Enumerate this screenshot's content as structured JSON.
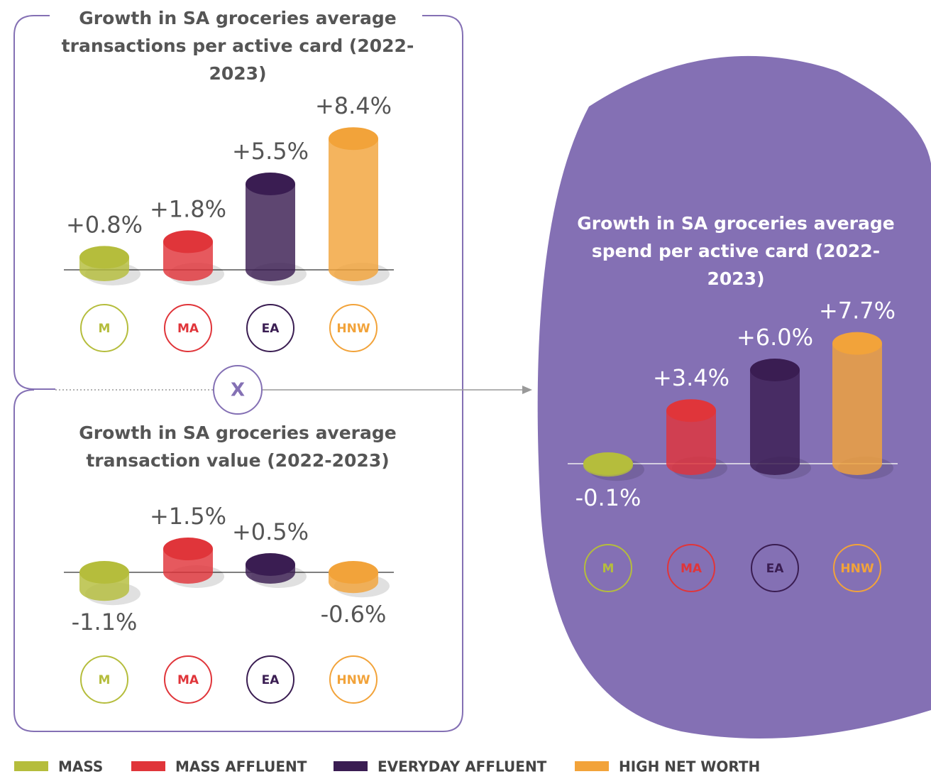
{
  "chart_data": [
    {
      "type": "bar",
      "title": "Growth in SA groceries average transactions per active card (2022-2023)",
      "categories": [
        "M",
        "MA",
        "EA",
        "HNW"
      ],
      "values": [
        0.8,
        1.8,
        5.5,
        8.4
      ],
      "value_labels": [
        "+0.8%",
        "+1.8%",
        "+5.5%",
        "+8.4%"
      ],
      "colors": [
        "#b5bd3c",
        "#e0353a",
        "#3a1d52",
        "#f2a33a"
      ]
    },
    {
      "type": "bar",
      "title": "Growth in SA groceries average transaction value (2022-2023)",
      "categories": [
        "M",
        "MA",
        "EA",
        "HNW"
      ],
      "values": [
        -1.1,
        1.5,
        0.5,
        -0.6
      ],
      "value_labels": [
        "-1.1%",
        "+1.5%",
        "+0.5%",
        "-0.6%"
      ],
      "colors": [
        "#b5bd3c",
        "#e0353a",
        "#3a1d52",
        "#f2a33a"
      ]
    },
    {
      "type": "bar",
      "title": "Growth in SA groceries average spend per active card (2022-2023)",
      "categories": [
        "M",
        "MA",
        "EA",
        "HNW"
      ],
      "values": [
        -0.1,
        3.4,
        6.0,
        7.7
      ],
      "value_labels": [
        "-0.1%",
        "+3.4%",
        "+6.0%",
        "+7.7%"
      ],
      "colors": [
        "#b5bd3c",
        "#e0353a",
        "#3a1d52",
        "#f2a33a"
      ]
    }
  ],
  "operator": "X",
  "legend": [
    "MASS",
    "MASS AFFLUENT",
    "EVERYDAY AFFLUENT",
    "HIGH NET WORTH"
  ]
}
